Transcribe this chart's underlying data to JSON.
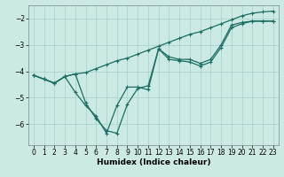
{
  "xlabel": "Humidex (Indice chaleur)",
  "bg_color": "#cceae4",
  "grid_color": "#aad4cc",
  "line_color": "#1a6e62",
  "xlim": [
    -0.5,
    23.5
  ],
  "ylim": [
    -6.8,
    -1.5
  ],
  "yticks": [
    -6,
    -5,
    -4,
    -3,
    -2
  ],
  "xticks": [
    0,
    1,
    2,
    3,
    4,
    5,
    6,
    7,
    8,
    9,
    10,
    11,
    12,
    13,
    14,
    15,
    16,
    17,
    18,
    19,
    20,
    21,
    22,
    23
  ],
  "line1_x": [
    0,
    1,
    2,
    3,
    4,
    5,
    6,
    7,
    8,
    9,
    10,
    11,
    12,
    13,
    14,
    15,
    16,
    17,
    18,
    19,
    20,
    21,
    22,
    23
  ],
  "line1_y": [
    -4.15,
    -4.3,
    -4.45,
    -4.2,
    -4.1,
    -4.05,
    -3.9,
    -3.75,
    -3.6,
    -3.5,
    -3.35,
    -3.2,
    -3.05,
    -2.9,
    -2.75,
    -2.6,
    -2.5,
    -2.35,
    -2.2,
    -2.05,
    -1.9,
    -1.8,
    -1.75,
    -1.72
  ],
  "line2_x": [
    0,
    1,
    2,
    3,
    4,
    5,
    6,
    7,
    8,
    9,
    10,
    11,
    12,
    13,
    14,
    15,
    16,
    17,
    18,
    19,
    20,
    21,
    22,
    23
  ],
  "line2_y": [
    -4.15,
    -4.3,
    -4.45,
    -4.2,
    -4.1,
    -5.2,
    -5.8,
    -6.25,
    -6.35,
    -5.25,
    -4.65,
    -4.55,
    -3.15,
    -3.45,
    -3.55,
    -3.55,
    -3.7,
    -3.55,
    -3.0,
    -2.25,
    -2.15,
    -2.1,
    -2.1,
    -2.1
  ],
  "line3_x": [
    0,
    1,
    2,
    3,
    4,
    5,
    6,
    7,
    8,
    9,
    10,
    11,
    12,
    13,
    14,
    15,
    16,
    17,
    18,
    19,
    20,
    21,
    22,
    23
  ],
  "line3_y": [
    -4.15,
    -4.3,
    -4.45,
    -4.2,
    -4.8,
    -5.3,
    -5.7,
    -6.35,
    -5.3,
    -4.6,
    -4.6,
    -4.7,
    -3.15,
    -3.55,
    -3.6,
    -3.65,
    -3.8,
    -3.65,
    -3.1,
    -2.35,
    -2.2,
    -2.1,
    -2.1,
    -2.1
  ]
}
